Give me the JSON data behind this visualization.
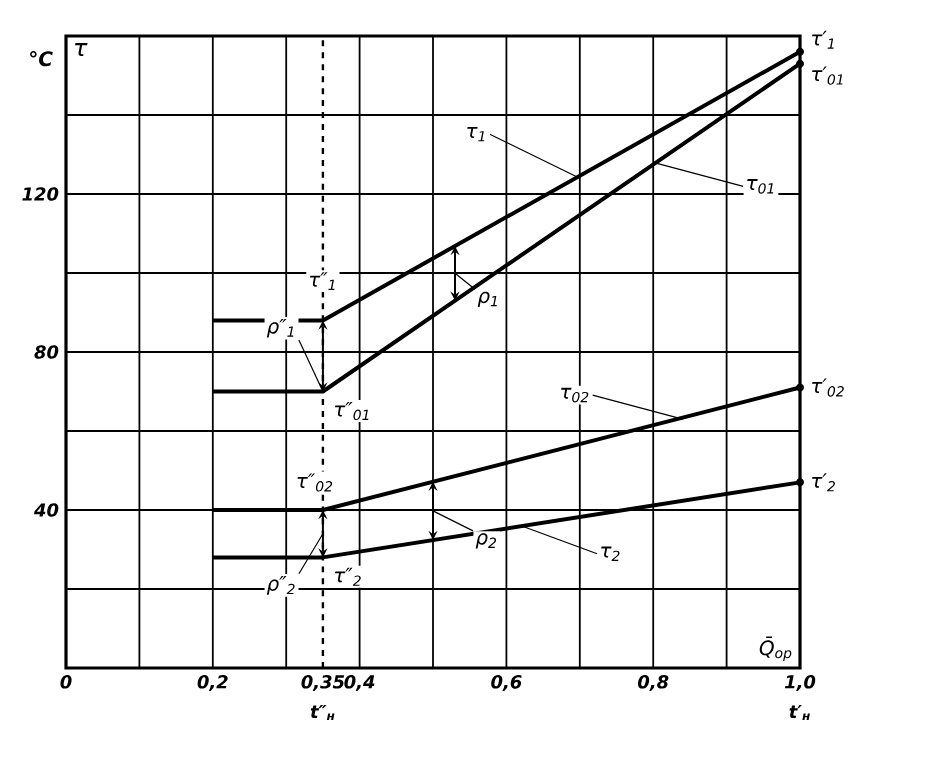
{
  "chart_data": {
    "type": "line",
    "ylabel": "°C",
    "xlabel": "Q̄$_{ор}$",
    "xlim": [
      0,
      1.0
    ],
    "ylim": [
      0,
      160
    ],
    "xticks": [
      {
        "value": 0,
        "label": "0"
      },
      {
        "value": 0.1,
        "label": null
      },
      {
        "value": 0.2,
        "label": "0,2"
      },
      {
        "value": 0.3,
        "label": null
      },
      {
        "value": 0.35,
        "label": "0,35"
      },
      {
        "value": 0.4,
        "label": "0,4"
      },
      {
        "value": 0.5,
        "label": null
      },
      {
        "value": 0.6,
        "label": "0,6"
      },
      {
        "value": 0.7,
        "label": null
      },
      {
        "value": 0.8,
        "label": "0,8"
      },
      {
        "value": 0.9,
        "label": null
      },
      {
        "value": 1.0,
        "label": "1,0"
      }
    ],
    "yticks": [
      {
        "value": 0,
        "label": null
      },
      {
        "value": 20,
        "label": null
      },
      40,
      {
        "value": 60,
        "label": null
      },
      80,
      {
        "value": 100,
        "label": null
      },
      120,
      {
        "value": 140,
        "label": null
      },
      {
        "value": 160,
        "label": null
      }
    ],
    "grid": true,
    "line_style": "solid",
    "series": [
      {
        "color": "#000000",
        "x": [
          0.2,
          0.35,
          1.0
        ],
        "values": [
          88,
          88,
          156
        ]
      },
      {
        "color": "#000000",
        "x": [
          0.2,
          0.35,
          1.0
        ],
        "values": [
          70,
          70,
          153
        ]
      },
      {
        "color": "#000000",
        "x": [
          0.2,
          0.35,
          1.0
        ],
        "values": [
          40,
          40,
          71
        ]
      },
      {
        "color": "#000000",
        "x": [
          0.2,
          0.35,
          1.0
        ],
        "values": [
          28,
          28,
          47
        ]
      }
    ],
    "ref_lines": [
      {
        "axis": "x",
        "value": 0.35,
        "label": "t″$_{н}$",
        "line_style": "dashed"
      }
    ],
    "annotations": [
      {
        "text": "τ′$_{1}$",
        "x": 1.0,
        "y": 156
      },
      {
        "text": "τ′$_{01}$",
        "x": 1.0,
        "y": 153
      },
      {
        "text": "τ′$_{02}$",
        "x": 1.0,
        "y": 71
      },
      {
        "text": "τ′$_{2}$",
        "x": 1.0,
        "y": 47
      },
      {
        "text": "τ$_{1}$",
        "x": 0.7,
        "y": 124
      },
      {
        "text": "τ$_{01}$",
        "x": 0.8,
        "y": 128
      },
      {
        "text": "τ$_{02}$",
        "x": 0.84,
        "y": 63
      },
      {
        "text": "τ$_{2}$",
        "x": 0.62,
        "y": 36
      },
      {
        "text": "ρ$_{1}$",
        "x": 0.53,
        "y": 93
      },
      {
        "text": "ρ$_{2}$",
        "x": 0.5,
        "y": 32.4
      },
      {
        "text": "ρ″$_{1}$",
        "x": 0.35,
        "y": 70
      },
      {
        "text": "ρ″$_{2}$",
        "x": 0.35,
        "y": 28
      },
      {
        "text": "τ″$_{1}$",
        "x": 0.35,
        "y": 88
      },
      {
        "text": "τ″$_{01}$",
        "x": 0.35,
        "y": 70
      },
      {
        "text": "τ″$_{02}$",
        "x": 0.35,
        "y": 40
      },
      {
        "text": "τ″$_{2}$",
        "x": 0.35,
        "y": 28
      },
      "t′$_{н}$",
      "τ"
    ]
  }
}
